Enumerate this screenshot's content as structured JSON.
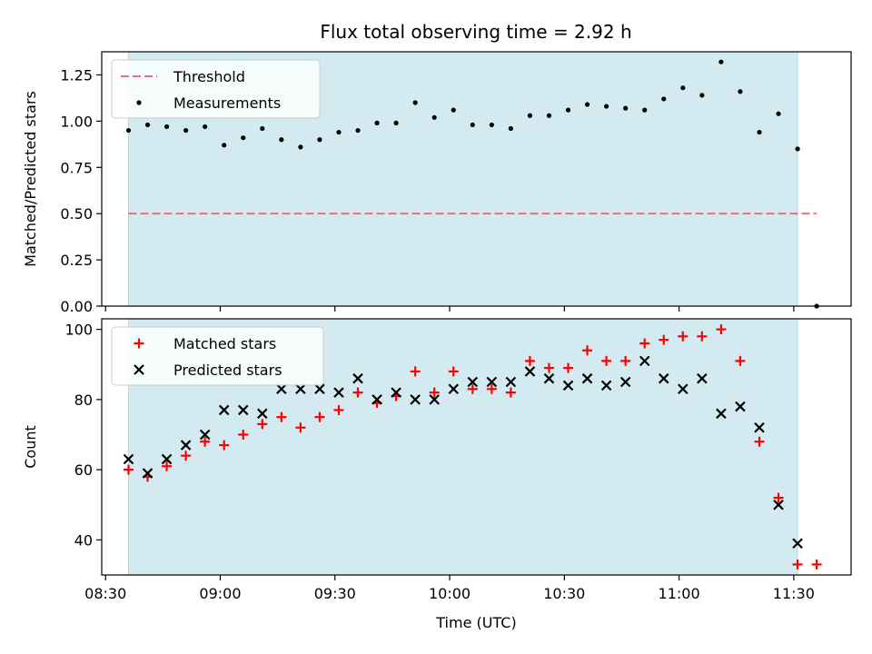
{
  "title": "Flux total observing time = 2.92 h",
  "chart_data": [
    {
      "type": "scatter",
      "panel": "ratio",
      "ylabel": "Matched/Predicted stars",
      "xlabel": "",
      "ylim": [
        0,
        1.375
      ],
      "yticks": [
        0.0,
        0.25,
        0.5,
        0.75,
        1.0,
        1.25
      ],
      "ytick_labels": [
        "0.00",
        "0.25",
        "0.50",
        "0.75",
        "1.00",
        "1.25"
      ],
      "shaded_span": {
        "start": "08:36",
        "end": "11:31",
        "color": "#d3eaf0"
      },
      "legend": {
        "position": "top-left",
        "entries": [
          "Threshold",
          "Measurements"
        ]
      },
      "threshold": {
        "name": "Threshold",
        "value": 0.5,
        "from": "08:36",
        "to": "11:36",
        "color": "#f07070"
      },
      "series": [
        {
          "name": "Measurements",
          "marker": "dot",
          "color": "#000000",
          "x": [
            "08:36",
            "08:41",
            "08:46",
            "08:51",
            "08:56",
            "09:01",
            "09:06",
            "09:11",
            "09:16",
            "09:21",
            "09:26",
            "09:31",
            "09:36",
            "09:41",
            "09:46",
            "09:51",
            "09:56",
            "10:01",
            "10:06",
            "10:11",
            "10:16",
            "10:21",
            "10:26",
            "10:31",
            "10:36",
            "10:41",
            "10:46",
            "10:51",
            "10:56",
            "11:01",
            "11:06",
            "11:11",
            "11:16",
            "11:21",
            "11:26",
            "11:31",
            "11:36"
          ],
          "y": [
            0.95,
            0.98,
            0.97,
            0.95,
            0.97,
            0.87,
            0.91,
            0.96,
            0.9,
            0.86,
            0.9,
            0.94,
            0.95,
            0.99,
            0.99,
            1.1,
            1.02,
            1.06,
            0.98,
            0.98,
            0.96,
            1.03,
            1.03,
            1.06,
            1.09,
            1.08,
            1.07,
            1.06,
            1.12,
            1.18,
            1.14,
            1.32,
            1.16,
            0.94,
            1.04,
            0.85,
            0.0
          ]
        }
      ]
    },
    {
      "type": "scatter",
      "panel": "count",
      "ylabel": "Count",
      "xlabel": "Time (UTC)",
      "ylim": [
        30,
        103
      ],
      "yticks": [
        40,
        60,
        80,
        100
      ],
      "ytick_labels": [
        "40",
        "60",
        "80",
        "100"
      ],
      "xlim": [
        "08:29",
        "11:45"
      ],
      "xticks": [
        "08:30",
        "09:00",
        "09:30",
        "10:00",
        "10:30",
        "11:00",
        "11:30"
      ],
      "xtick_labels": [
        "08:30",
        "09:00",
        "09:30",
        "10:00",
        "10:30",
        "11:00",
        "11:30"
      ],
      "shaded_span": {
        "start": "08:36",
        "end": "11:31",
        "color": "#d3eaf0"
      },
      "legend": {
        "position": "top-left",
        "entries": [
          "Matched stars",
          "Predicted stars"
        ]
      },
      "series": [
        {
          "name": "Matched stars",
          "marker": "plus",
          "color": "#ff0000",
          "x": [
            "08:36",
            "08:41",
            "08:46",
            "08:51",
            "08:56",
            "09:01",
            "09:06",
            "09:11",
            "09:16",
            "09:21",
            "09:26",
            "09:31",
            "09:36",
            "09:41",
            "09:46",
            "09:51",
            "09:56",
            "10:01",
            "10:06",
            "10:11",
            "10:16",
            "10:21",
            "10:26",
            "10:31",
            "10:36",
            "10:41",
            "10:46",
            "10:51",
            "10:56",
            "11:01",
            "11:06",
            "11:11",
            "11:16",
            "11:21",
            "11:26",
            "11:31",
            "11:36"
          ],
          "y": [
            60,
            58,
            61,
            64,
            68,
            67,
            70,
            73,
            75,
            72,
            75,
            77,
            82,
            79,
            81,
            88,
            82,
            88,
            83,
            83,
            82,
            91,
            89,
            89,
            94,
            91,
            91,
            96,
            97,
            98,
            98,
            100,
            91,
            68,
            52,
            33,
            33
          ]
        },
        {
          "name": "Predicted stars",
          "marker": "x",
          "color": "#000000",
          "x": [
            "08:36",
            "08:41",
            "08:46",
            "08:51",
            "08:56",
            "09:01",
            "09:06",
            "09:11",
            "09:16",
            "09:21",
            "09:26",
            "09:31",
            "09:36",
            "09:41",
            "09:46",
            "09:51",
            "09:56",
            "10:01",
            "10:06",
            "10:11",
            "10:16",
            "10:21",
            "10:26",
            "10:31",
            "10:36",
            "10:41",
            "10:46",
            "10:51",
            "10:56",
            "11:01",
            "11:06",
            "11:11",
            "11:16",
            "11:21",
            "11:26",
            "11:31"
          ],
          "y": [
            63,
            59,
            63,
            67,
            70,
            77,
            77,
            76,
            83,
            83,
            83,
            82,
            86,
            80,
            82,
            80,
            80,
            83,
            85,
            85,
            85,
            88,
            86,
            84,
            86,
            84,
            85,
            91,
            86,
            83,
            86,
            76,
            78,
            72,
            50,
            39
          ]
        }
      ]
    }
  ]
}
